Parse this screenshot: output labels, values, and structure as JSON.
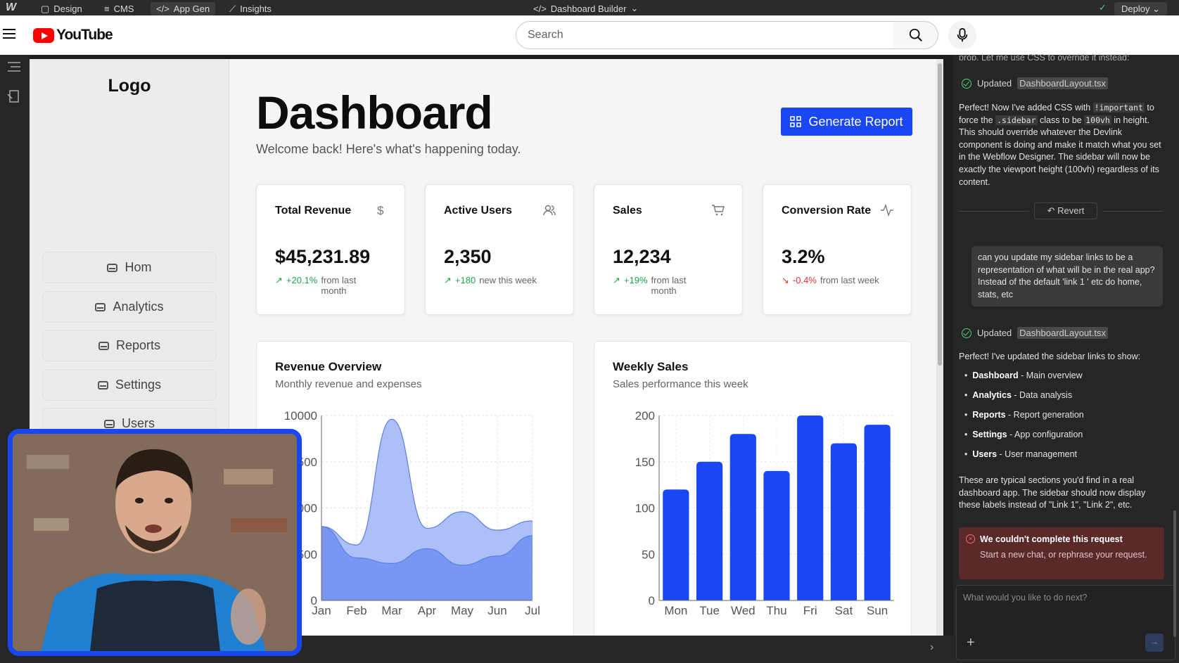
{
  "webflow_bar": {
    "tabs": [
      "Design",
      "CMS",
      "App Gen",
      "Insights"
    ],
    "center": "Dashboard Builder",
    "deploy": "Deploy"
  },
  "youtube": {
    "logo_text": "YouTube",
    "search_placeholder": "Search"
  },
  "sidebar": {
    "logo": "Logo",
    "links": [
      "Hom",
      "Analytics",
      "Reports",
      "Settings",
      "Users"
    ]
  },
  "dashboard": {
    "title": "Dashboard",
    "subtitle": "Welcome back! Here's what's happening today.",
    "generate_button": "Generate Report",
    "cards": [
      {
        "title": "Total Revenue",
        "icon": "dollar-icon",
        "value": "$45,231.89",
        "change": "+20.1%",
        "note": "from last month",
        "trend": "up"
      },
      {
        "title": "Active Users",
        "icon": "users-icon",
        "value": "2,350",
        "change": "+180",
        "note": "new this week",
        "trend": "up"
      },
      {
        "title": "Sales",
        "icon": "cart-icon",
        "value": "12,234",
        "change": "+19%",
        "note": "from last month",
        "trend": "up"
      },
      {
        "title": "Conversion Rate",
        "icon": "activity-icon",
        "value": "3.2%",
        "change": "-0.4%",
        "note": "from last week",
        "trend": "down"
      }
    ]
  },
  "chart_data": [
    {
      "type": "area",
      "title": "Revenue Overview",
      "subtitle": "Monthly revenue and expenses",
      "x": [
        "Jan",
        "Feb",
        "Mar",
        "Apr",
        "May",
        "Jun",
        "Jul"
      ],
      "yticks": [
        "0",
        "2500",
        "5000",
        "7500",
        "10000"
      ],
      "ylim": [
        0,
        10000
      ],
      "series": [
        {
          "values": [
            4000,
            3000,
            9800,
            3900,
            4800,
            3800,
            4300
          ],
          "color": "#9db4f5"
        },
        {
          "values": [
            4000,
            2300,
            2000,
            2800,
            1900,
            2400,
            3500
          ],
          "color": "#6f8ff2"
        }
      ],
      "grid": true
    },
    {
      "type": "bar",
      "title": "Weekly Sales",
      "subtitle": "Sales performance this week",
      "categories": [
        "Mon",
        "Tue",
        "Wed",
        "Thu",
        "Fri",
        "Sat",
        "Sun"
      ],
      "values": [
        120,
        150,
        180,
        140,
        200,
        170,
        190
      ],
      "yticks": [
        "0",
        "50",
        "100",
        "150",
        "200"
      ],
      "ylim": [
        0,
        200
      ],
      "color": "#1a47f5",
      "grid": true
    }
  ],
  "chat": {
    "top_cut": "prop. Let me use CSS to override it instead:",
    "updated_label": "Updated",
    "file": "DashboardLayout.tsx",
    "msg1": "Perfect! Now I've added CSS with !important to force the .sidebar class to be 100vh in height. This should override whatever the Devlink component is doing and make it match what you set in the Webflow Designer. The sidebar will now be exactly the viewport height (100vh) regardless of its content.",
    "revert": "Revert",
    "user_msg": "can you update my sidebar links to be a representation of what will be in the real app? Instead of the default 'link 1 ' etc do home, stats, etc",
    "msg2_intro": "Perfect! I've updated the sidebar links to show:",
    "bullets": [
      {
        "name": "Dashboard",
        "desc": " - Main overview"
      },
      {
        "name": "Analytics",
        "desc": " - Data analysis"
      },
      {
        "name": "Reports",
        "desc": " - Report generation"
      },
      {
        "name": "Settings",
        "desc": " - App configuration"
      },
      {
        "name": "Users",
        "desc": " - User management"
      }
    ],
    "msg2_outro": "These are typical sections you'd find in a real dashboard app. The sidebar should now display these labels instead of \"Link 1\", \"Link 2\", etc.",
    "error_title": "We couldn't complete this request",
    "error_desc": "Start a new chat, or rephrase your request.",
    "input_placeholder": "What would you like to do next?"
  }
}
